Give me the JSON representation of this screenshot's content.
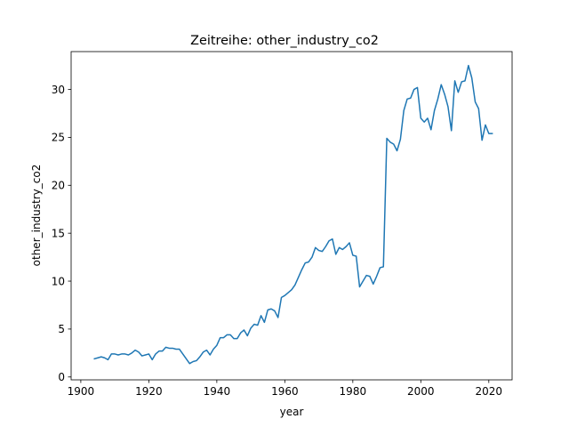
{
  "chart_data": {
    "type": "line",
    "title": "Zeitreihe: other_industry_co2",
    "xlabel": "year",
    "ylabel": "other_industry_co2",
    "xlim": [
      1897.15,
      2026.85
    ],
    "ylim": [
      -0.3,
      33.95
    ],
    "xticks": [
      1900,
      1920,
      1940,
      1960,
      1980,
      2000,
      2020
    ],
    "yticks": [
      0,
      5,
      10,
      15,
      20,
      25,
      30
    ],
    "grid": false,
    "legend": "none",
    "series": [
      {
        "color": "#1f77b4",
        "x": [
          1904,
          1905,
          1906,
          1907,
          1908,
          1909,
          1910,
          1911,
          1912,
          1913,
          1914,
          1915,
          1916,
          1917,
          1918,
          1919,
          1920,
          1921,
          1922,
          1923,
          1924,
          1925,
          1926,
          1927,
          1928,
          1929,
          1930,
          1931,
          1932,
          1933,
          1934,
          1935,
          1936,
          1937,
          1938,
          1939,
          1940,
          1941,
          1942,
          1943,
          1944,
          1945,
          1946,
          1947,
          1948,
          1949,
          1950,
          1951,
          1952,
          1953,
          1954,
          1955,
          1956,
          1957,
          1958,
          1959,
          1960,
          1961,
          1962,
          1963,
          1964,
          1965,
          1966,
          1967,
          1968,
          1969,
          1970,
          1971,
          1972,
          1973,
          1974,
          1975,
          1976,
          1977,
          1978,
          1979,
          1980,
          1981,
          1982,
          1983,
          1984,
          1985,
          1986,
          1987,
          1988,
          1989,
          1990,
          1991,
          1992,
          1993,
          1994,
          1995,
          1996,
          1997,
          1998,
          1999,
          2000,
          2001,
          2002,
          2003,
          2004,
          2005,
          2006,
          2007,
          2008,
          2009,
          2010,
          2011,
          2012,
          2013,
          2014,
          2015,
          2016,
          2017,
          2018,
          2019,
          2020,
          2021
        ],
        "y": [
          1.9,
          2.0,
          2.1,
          2.0,
          1.8,
          2.4,
          2.4,
          2.3,
          2.4,
          2.4,
          2.3,
          2.5,
          2.8,
          2.6,
          2.2,
          2.3,
          2.4,
          1.8,
          2.4,
          2.7,
          2.7,
          3.1,
          3.0,
          3.0,
          2.9,
          2.9,
          2.4,
          1.9,
          1.4,
          1.6,
          1.7,
          2.1,
          2.6,
          2.8,
          2.3,
          2.9,
          3.3,
          4.1,
          4.1,
          4.4,
          4.4,
          4.0,
          4.0,
          4.6,
          4.9,
          4.3,
          5.1,
          5.5,
          5.4,
          6.4,
          5.7,
          7.0,
          7.1,
          6.9,
          6.2,
          8.3,
          8.5,
          8.8,
          9.1,
          9.6,
          10.4,
          11.2,
          11.9,
          12.0,
          12.5,
          13.5,
          13.2,
          13.1,
          13.6,
          14.2,
          14.4,
          12.8,
          13.5,
          13.3,
          13.6,
          14.0,
          12.7,
          12.6,
          9.4,
          10.0,
          10.6,
          10.5,
          9.7,
          10.5,
          11.4,
          11.5,
          24.9,
          24.5,
          24.3,
          23.6,
          24.8,
          27.8,
          29.0,
          29.1,
          30.0,
          30.2,
          27.0,
          26.6,
          27.0,
          25.8,
          27.8,
          29.0,
          30.5,
          29.5,
          28.2,
          25.7,
          30.9,
          29.7,
          30.8,
          30.9,
          32.5,
          31.2,
          28.7,
          28.0,
          24.7,
          26.3,
          25.4,
          25.4
        ]
      }
    ]
  }
}
